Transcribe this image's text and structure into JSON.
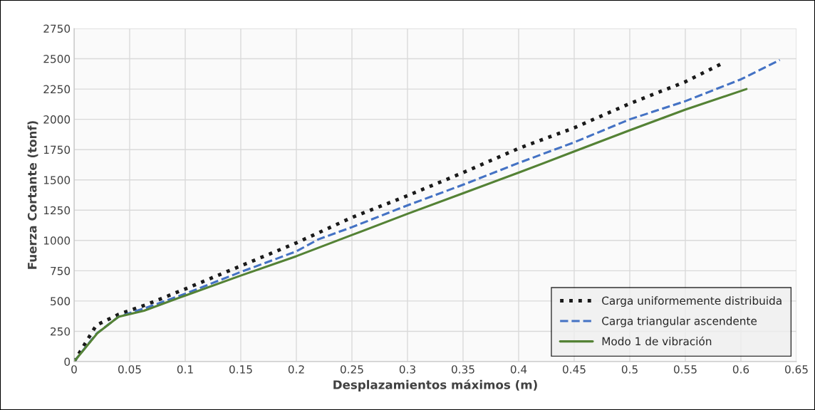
{
  "chart_data": {
    "type": "line",
    "xlabel": "Desplazamientos máximos (m)",
    "ylabel": "Fuerza Cortante (tonf)",
    "xlim": [
      0,
      0.65
    ],
    "xticks": [
      0,
      0.05,
      0.1,
      0.15,
      0.2,
      0.25,
      0.3,
      0.35,
      0.4,
      0.45,
      0.5,
      0.55,
      0.6,
      0.65
    ],
    "ylim": [
      0,
      2750
    ],
    "yticks": [
      0,
      250,
      500,
      750,
      1000,
      1250,
      1500,
      1750,
      2000,
      2250,
      2500,
      2750
    ],
    "grid": true,
    "legend": "bottom right",
    "series": [
      {
        "name": "Carga uniformemente distribuida",
        "color": "#1a1a1a",
        "line_style": "dotted",
        "x": [
          0,
          0.02,
          0.04,
          0.065,
          0.1,
          0.15,
          0.2,
          0.25,
          0.3,
          0.35,
          0.4,
          0.45,
          0.5,
          0.55,
          0.585
        ],
        "values": [
          0,
          300,
          390,
          470,
          600,
          790,
          980,
          1190,
          1370,
          1560,
          1760,
          1930,
          2130,
          2310,
          2470
        ]
      },
      {
        "name": "Carga triangular ascendente",
        "color": "#4472c4",
        "line_style": "dashed",
        "x": [
          0,
          0.02,
          0.04,
          0.065,
          0.1,
          0.15,
          0.2,
          0.22,
          0.25,
          0.3,
          0.35,
          0.4,
          0.45,
          0.5,
          0.55,
          0.6,
          0.635
        ],
        "values": [
          0,
          230,
          370,
          445,
          560,
          740,
          910,
          1010,
          1110,
          1290,
          1460,
          1640,
          1810,
          2000,
          2150,
          2330,
          2490
        ]
      },
      {
        "name": "Modo 1 de vibración",
        "color": "#548235",
        "line_style": "solid",
        "x": [
          0,
          0.021,
          0.04,
          0.063,
          0.1,
          0.15,
          0.2,
          0.25,
          0.3,
          0.35,
          0.4,
          0.45,
          0.5,
          0.55,
          0.605
        ],
        "values": [
          0,
          235,
          370,
          420,
          545,
          710,
          870,
          1045,
          1220,
          1390,
          1560,
          1735,
          1910,
          2080,
          2250
        ]
      }
    ]
  }
}
